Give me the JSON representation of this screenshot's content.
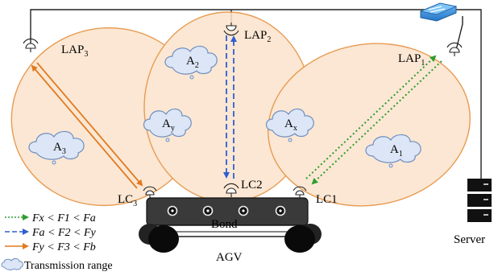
{
  "nodes": {
    "lap3": {
      "main": "LAP",
      "sub": "3"
    },
    "lap2": {
      "main": "LAP",
      "sub": "2"
    },
    "lap1": {
      "main": "LAP",
      "sub": "1"
    },
    "lc3": {
      "main": "LC",
      "sub": "3"
    },
    "lc2": {
      "main": "LC2"
    },
    "lc1": {
      "main": "LC1"
    }
  },
  "areas": {
    "a3": {
      "main": "A",
      "sub": "3"
    },
    "a2": {
      "main": "A",
      "sub": "2"
    },
    "ay": {
      "main": "A",
      "sub": "y"
    },
    "ax": {
      "main": "A",
      "sub": "x"
    },
    "a1": {
      "main": "A",
      "sub": "1"
    }
  },
  "vehicle": {
    "bond": "Bond",
    "agv": "AGV"
  },
  "server": {
    "label": "Server"
  },
  "legend": {
    "items": [
      {
        "text": "Fx < F1 < Fa",
        "color": "#2e9e2e",
        "style": "dotted"
      },
      {
        "text": "Fa < F2 < Fy",
        "color": "#2f5fd0",
        "style": "dashed"
      },
      {
        "text": "Fy < F3 < Fb",
        "color": "#e07b22",
        "style": "solid"
      }
    ],
    "range_label": "Transmission range"
  },
  "colors": {
    "range_fill": "#fbe3cc",
    "range_stroke": "#e58a35",
    "cloud_fill": "#dde6f6",
    "cloud_stroke": "#6f8fc0",
    "switch": "#3d8fd8"
  },
  "icons": [
    "antenna-icon",
    "cloud-icon",
    "network-switch-icon",
    "server-rack-icon",
    "wheel-icon"
  ]
}
